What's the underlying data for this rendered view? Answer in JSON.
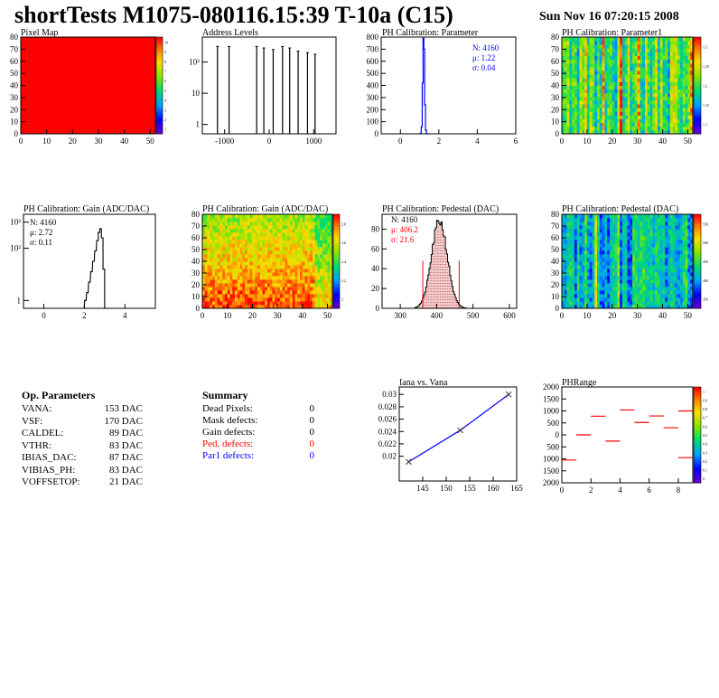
{
  "header": {
    "title": "shortTests M1075-080116.15:39 T-10a (C15)",
    "date": "Sun Nov 16 07:20:15 2008"
  },
  "colors": {
    "red": "#ff0000",
    "blue": "#0000ff",
    "dark_red": "#990000",
    "frame": "#000000"
  },
  "chart_data": [
    {
      "id": "pixel-map",
      "type": "heatmap",
      "title": "Pixel Map",
      "xlim": [
        0,
        52
      ],
      "ylim": [
        0,
        80
      ],
      "xticks": [
        0,
        10,
        20,
        30,
        40,
        50
      ],
      "yticks": [
        0,
        10,
        20,
        30,
        40,
        50,
        60,
        70,
        80
      ],
      "uniform_value": 10,
      "zlim": [
        0,
        10
      ],
      "palette": "rainbow"
    },
    {
      "id": "address-levels",
      "type": "bar",
      "title": "Address Levels",
      "log_y": true,
      "xlim": [
        -1500,
        1500
      ],
      "xticks": [
        -1000,
        0,
        1000
      ],
      "ytick_labels": [
        "1",
        "10",
        "10²"
      ],
      "peaks_x": [
        -1160,
        -900,
        -280,
        -120,
        90,
        300,
        460,
        650,
        860,
        1030
      ],
      "peaks_log": [
        2.5,
        2.5,
        2.5,
        2.45,
        2.4,
        2.5,
        2.45,
        2.35,
        2.3,
        2.25
      ]
    },
    {
      "id": "ph-calibration-parameter",
      "type": "bar",
      "title": "PH Calibration: Parameter",
      "xlim": [
        -1,
        6
      ],
      "ylim": [
        0,
        800
      ],
      "xticks": [
        0,
        2,
        4,
        6
      ],
      "yticks": [
        0,
        100,
        200,
        300,
        400,
        500,
        600,
        700,
        800
      ],
      "stats": {
        "entries": "N: 4160",
        "mean": "μ: 1.22",
        "rms": "σ: 0.04"
      },
      "bins_x": [
        1.06,
        1.11,
        1.16,
        1.2,
        1.24,
        1.28,
        1.33,
        1.38
      ],
      "bins_y": [
        5,
        60,
        420,
        790,
        700,
        240,
        30,
        3
      ]
    },
    {
      "id": "ph-calibration-parameter1",
      "type": "heatmap",
      "title": "PH Calibration: Parameter1",
      "xlim": [
        0,
        52
      ],
      "ylim": [
        0,
        80
      ],
      "xticks": [
        0,
        10,
        20,
        30,
        40,
        50
      ],
      "yticks": [
        0,
        10,
        20,
        30,
        40,
        50,
        60,
        70,
        80
      ],
      "zlim": [
        1.05,
        1.35
      ],
      "palette_ticks": [
        "1.1",
        "1.15",
        "1.2",
        "1.25",
        "1.3"
      ]
    },
    {
      "id": "ph-calibration-gain",
      "type": "bar",
      "title": "PH Calibration: Gain (ADC/DAC)",
      "log_y": true,
      "xlim": [
        -1,
        5.5
      ],
      "xticks": [
        0,
        2,
        4
      ],
      "ytick_labels": [
        "1",
        "10²",
        "10³"
      ],
      "stats": {
        "entries": "N: 4160",
        "mean": "μ: 2.72",
        "rms": "σ: 0.11"
      },
      "bins_x": [
        2.05,
        2.15,
        2.25,
        2.35,
        2.45,
        2.55,
        2.65,
        2.72,
        2.8,
        2.88,
        2.96
      ],
      "bins_log": [
        0.0,
        0.3,
        0.7,
        1.1,
        1.5,
        1.9,
        2.3,
        2.6,
        2.75,
        2.4,
        1.2
      ]
    },
    {
      "id": "ph-calibration-gain-map",
      "type": "heatmap",
      "title": "PH Calibration: Gain (ADC/DAC)",
      "xlim": [
        0,
        52
      ],
      "ylim": [
        0,
        80
      ],
      "xticks": [
        0,
        10,
        20,
        30,
        40,
        50
      ],
      "yticks": [
        0,
        10,
        20,
        30,
        40,
        50,
        60,
        70,
        80
      ],
      "zlim": [
        1.9,
        2.9
      ],
      "palette_ticks": [
        "2",
        "2.2",
        "2.4",
        "2.6",
        "2.8"
      ]
    },
    {
      "id": "ph-calibration-pedestal",
      "type": "bar",
      "title": "PH Calibration: Pedestal (DAC)",
      "xlim": [
        250,
        620
      ],
      "ylim": [
        0,
        95
      ],
      "xticks": [
        300,
        400,
        500,
        600
      ],
      "yticks": [
        0,
        20,
        40,
        60,
        80
      ],
      "stats": {
        "entries": "N: 4160",
        "mean": "μ: 406.2",
        "rms": "σ: 21.6"
      },
      "mean": 406.2,
      "rms": 21.6,
      "cut_lines": [
        362,
        462
      ],
      "cut_height": 48
    },
    {
      "id": "ph-calibration-pedestal-map",
      "type": "heatmap",
      "title": "PH Calibration: Pedestal (DAC)",
      "xlim": [
        0,
        52
      ],
      "ylim": [
        0,
        80
      ],
      "xticks": [
        0,
        10,
        20,
        30,
        40,
        50
      ],
      "yticks": [
        0,
        10,
        20,
        30,
        40,
        50,
        60,
        70,
        80
      ],
      "zlim": [
        340,
        560
      ],
      "palette_ticks": [
        "350",
        "400",
        "450",
        "500",
        "550"
      ]
    },
    {
      "id": "iana-vs-vana",
      "type": "line",
      "title": "Iana vs. Vana",
      "xlim": [
        140,
        165
      ],
      "ylim": [
        0.016,
        0.0312
      ],
      "xticks": [
        145,
        150,
        155,
        160,
        165
      ],
      "yticks": [
        0.02,
        0.022,
        0.024,
        0.026,
        0.028,
        0.03
      ],
      "x": [
        142,
        153,
        163.3
      ],
      "y": [
        0.0191,
        0.0242,
        0.03
      ]
    },
    {
      "id": "phrange",
      "type": "scatter",
      "title": "PHRange",
      "xlim": [
        0,
        9
      ],
      "ylim": [
        -2000,
        2000
      ],
      "xticks": [
        0,
        2,
        4,
        6,
        8
      ],
      "yticks": [
        2000,
        1500,
        1000,
        500,
        0,
        -500,
        -1000,
        -1500,
        -2000
      ],
      "ytick_labels": [
        "2000",
        "1500",
        "1000",
        "500",
        "0",
        "500",
        "1000",
        "1500",
        "2000"
      ],
      "x": [
        0.5,
        1.5,
        2.5,
        3.5,
        4.5,
        5.5,
        6.5,
        7.5,
        8.5
      ],
      "y": [
        -1050,
        0,
        780,
        -260,
        1040,
        520,
        790,
        300,
        1000
      ],
      "extra_segment": {
        "x": 8.5,
        "y": -950
      },
      "zlim": [
        0,
        1
      ],
      "palette_ticks": [
        "0",
        "0.1",
        "0.2",
        "0.3",
        "0.4",
        "0.5",
        "0.6",
        "0.7",
        "0.8",
        "0.9",
        "1"
      ]
    }
  ],
  "op_parameters": {
    "title": "Op. Parameters",
    "rows": [
      {
        "name": "VANA:",
        "value": "153 DAC"
      },
      {
        "name": "VSF:",
        "value": "170 DAC"
      },
      {
        "name": "CALDEL:",
        "value": "89 DAC"
      },
      {
        "name": "VTHR:",
        "value": "83 DAC"
      },
      {
        "name": "IBIAS_DAC:",
        "value": "87 DAC"
      },
      {
        "name": "VIBIAS_PH:",
        "value": "83 DAC"
      },
      {
        "name": "VOFFSETOP:",
        "value": "21 DAC"
      }
    ]
  },
  "summary": {
    "title": "Summary",
    "rows": [
      {
        "name": "Dead Pixels:",
        "value": "0",
        "color": "#000000"
      },
      {
        "name": "Mask defects:",
        "value": "0",
        "color": "#000000"
      },
      {
        "name": "Gain defects:",
        "value": "0",
        "color": "#000000"
      },
      {
        "name": "Ped. defects:",
        "value": "0",
        "color": "#ff0000"
      },
      {
        "name": "Par1 defects:",
        "value": "0",
        "color": "#0000ff"
      }
    ]
  }
}
